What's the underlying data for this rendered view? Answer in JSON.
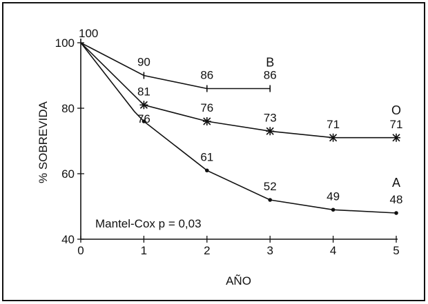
{
  "chart_data": {
    "type": "line",
    "xlabel": "AÑO",
    "ylabel": "% SOBREVIDA",
    "xlim": [
      0,
      5
    ],
    "ylim": [
      40,
      100
    ],
    "x_ticks": [
      "0",
      "1",
      "2",
      "3",
      "4",
      "5"
    ],
    "y_ticks": [
      "40",
      "60",
      "80",
      "100"
    ],
    "grid": false,
    "annotation": "Mantel-Cox p = 0,03",
    "shared_label": "100",
    "series": [
      {
        "name": "B",
        "x": [
          0,
          1,
          2,
          3
        ],
        "y": [
          100,
          90,
          86,
          86
        ],
        "labels": [
          "",
          "90",
          "86",
          "86"
        ]
      },
      {
        "name": "O",
        "x": [
          0,
          1,
          2,
          3,
          4,
          5
        ],
        "y": [
          100,
          81,
          76,
          73,
          71,
          71
        ],
        "labels": [
          "",
          "81",
          "76",
          "73",
          "71",
          "71"
        ]
      },
      {
        "name": "A",
        "x": [
          0,
          0.85,
          1,
          2,
          3,
          4,
          5
        ],
        "y": [
          100,
          79,
          76,
          61,
          52,
          49,
          48
        ],
        "labels": [
          "",
          "",
          "76",
          "61",
          "52",
          "49",
          "48"
        ]
      }
    ]
  }
}
